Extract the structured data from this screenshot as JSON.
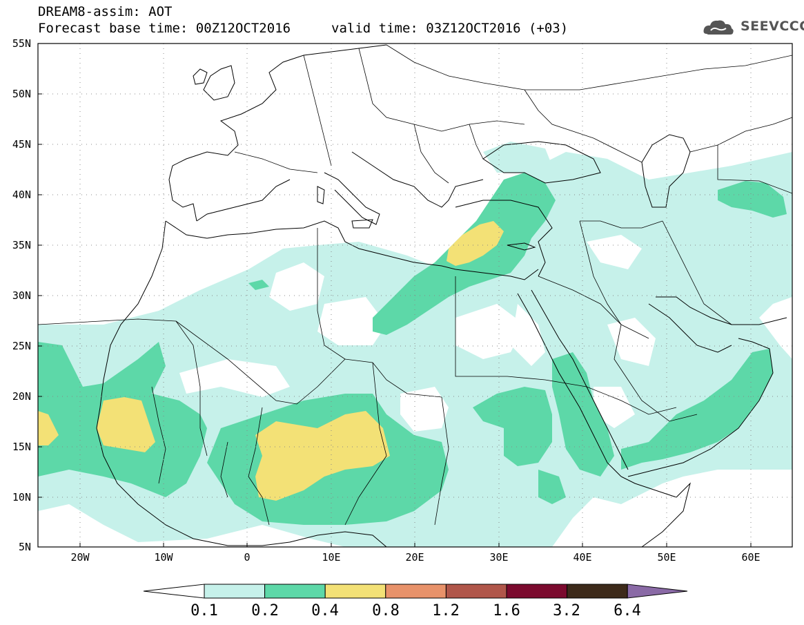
{
  "title_line1": "DREAM8-assim: AOT",
  "title_line2": "Forecast base time: 00Z12OCT2016",
  "valid_time": "valid time: 03Z12OCT2016 (+03)",
  "logo_text": "SEEVCCC",
  "lat_labels": [
    "55N",
    "50N",
    "45N",
    "40N",
    "35N",
    "30N",
    "25N",
    "20N",
    "15N",
    "10N",
    "5N"
  ],
  "lon_labels": [
    "20W",
    "10W",
    "0",
    "10E",
    "20E",
    "30E",
    "40E",
    "50E",
    "60E"
  ],
  "colorbar": {
    "thresholds": [
      "0.1",
      "0.2",
      "0.4",
      "0.8",
      "1.2",
      "1.6",
      "3.2",
      "6.4"
    ],
    "colors": [
      "#ffffff",
      "#c6f1ea",
      "#5dd8a8",
      "#f3e176",
      "#e8926a",
      "#b0564a",
      "#7b0a2e",
      "#3d2a1a",
      "#8a6aa6"
    ]
  },
  "field_colors": {
    "low": "#c6f1ea",
    "mid": "#5dd8a8",
    "high": "#f3e176"
  }
}
